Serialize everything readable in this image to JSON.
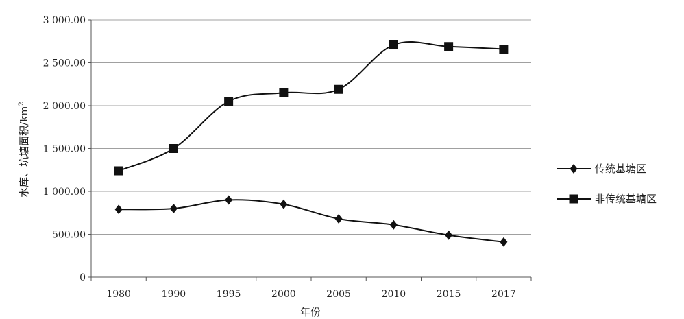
{
  "chart_data": {
    "type": "line",
    "xlabel": "年份",
    "ylabel": "水库、坑塘面积/km",
    "ylabel_sup": "2",
    "categories": [
      "1980",
      "1990",
      "1995",
      "2000",
      "2005",
      "2010",
      "2015",
      "2017"
    ],
    "ylim": [
      0,
      3000
    ],
    "yticks": [
      0,
      500,
      1000,
      1500,
      2000,
      2500,
      3000
    ],
    "ytick_labels": [
      "0",
      "500.00",
      "1 000.00",
      "1 500.00",
      "2 000.00",
      "2 500.00",
      "3 000.00"
    ],
    "grid": true,
    "legend_position": "right",
    "series": [
      {
        "name": "传统基塘区",
        "marker": "diamond",
        "color": "#111111",
        "values": [
          790,
          800,
          900,
          850,
          680,
          610,
          490,
          410
        ]
      },
      {
        "name": "非传统基塘区",
        "marker": "square",
        "color": "#111111",
        "values": [
          1240,
          1500,
          2050,
          2150,
          2190,
          2710,
          2690,
          2660
        ]
      }
    ]
  }
}
